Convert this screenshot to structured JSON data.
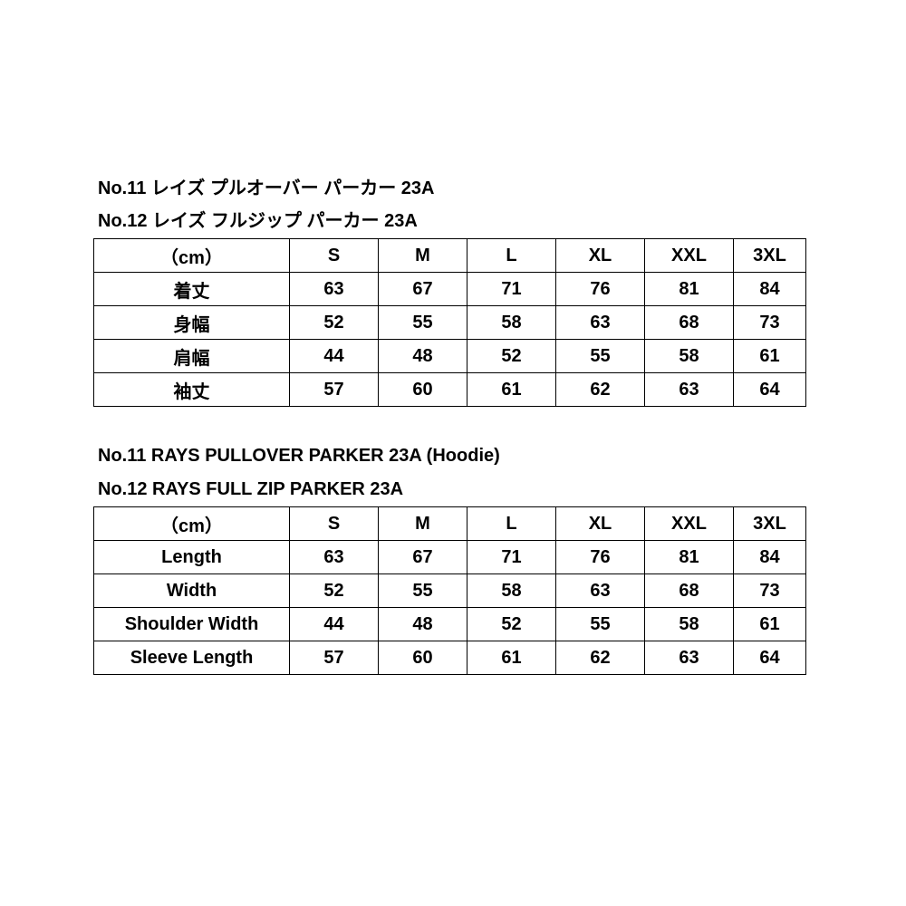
{
  "jp": {
    "title1": "No.11 レイズ プルオーバー パーカー 23A",
    "title2": "No.12 レイズ フルジップ パーカー 23A",
    "header": [
      "（cm）",
      "S",
      "M",
      "L",
      "XL",
      "XXL",
      "3XL"
    ],
    "rows": [
      [
        "着丈",
        "63",
        "67",
        "71",
        "76",
        "81",
        "84"
      ],
      [
        "身幅",
        "52",
        "55",
        "58",
        "63",
        "68",
        "73"
      ],
      [
        "肩幅",
        "44",
        "48",
        "52",
        "55",
        "58",
        "61"
      ],
      [
        "袖丈",
        "57",
        "60",
        "61",
        "62",
        "63",
        "64"
      ]
    ]
  },
  "en": {
    "title1": "No.11 RAYS PULLOVER PARKER 23A (Hoodie)",
    "title2": "No.12 RAYS FULL ZIP PARKER 23A",
    "header": [
      "（cm）",
      "S",
      "M",
      "L",
      "XL",
      "XXL",
      "3XL"
    ],
    "rows": [
      [
        "Length",
        "63",
        "67",
        "71",
        "76",
        "81",
        "84"
      ],
      [
        "Width",
        "52",
        "55",
        "58",
        "63",
        "68",
        "73"
      ],
      [
        "Shoulder Width",
        "44",
        "48",
        "52",
        "55",
        "58",
        "61"
      ],
      [
        "Sleeve Length",
        "57",
        "60",
        "61",
        "62",
        "63",
        "64"
      ]
    ]
  }
}
